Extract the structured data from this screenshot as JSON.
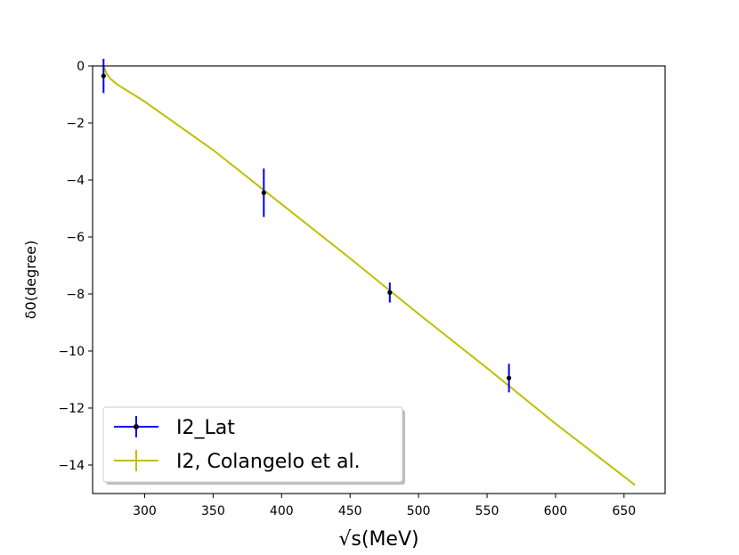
{
  "chart_data": {
    "type": "line",
    "title": "",
    "xlabel": "√s(MeV)",
    "ylabel": "δ0(degree)",
    "xlim": [
      262,
      680
    ],
    "ylim": [
      -15,
      0
    ],
    "x_ticks": [
      300,
      350,
      400,
      450,
      500,
      550,
      600,
      650
    ],
    "y_ticks": [
      0,
      -2,
      -4,
      -6,
      -8,
      -10,
      -12,
      -14
    ],
    "x_tick_labels": [
      "300",
      "350",
      "400",
      "450",
      "500",
      "550",
      "600",
      "650"
    ],
    "y_tick_labels": [
      "0",
      "−2",
      "−4",
      "−6",
      "−8",
      "−10",
      "−12",
      "−14"
    ],
    "grid": false,
    "legend_position": "lower-left",
    "series": [
      {
        "name": "I2_Lat",
        "kind": "errorbar",
        "color": "#0000ff",
        "marker_color": "#000000",
        "x": [
          270,
          387,
          479,
          566
        ],
        "y": [
          -0.35,
          -4.45,
          -7.95,
          -10.95
        ],
        "yerr": [
          0.6,
          0.85,
          0.35,
          0.5
        ]
      },
      {
        "name": "I2, Colangelo et al.",
        "kind": "line",
        "color": "#bfbf00",
        "x": [
          270,
          272,
          275,
          280,
          290,
          300,
          350,
          400,
          450,
          500,
          550,
          600,
          658
        ],
        "y": [
          0,
          -0.25,
          -0.45,
          -0.65,
          -0.95,
          -1.25,
          -2.95,
          -4.85,
          -6.75,
          -8.7,
          -10.6,
          -12.55,
          -14.7
        ]
      }
    ]
  }
}
